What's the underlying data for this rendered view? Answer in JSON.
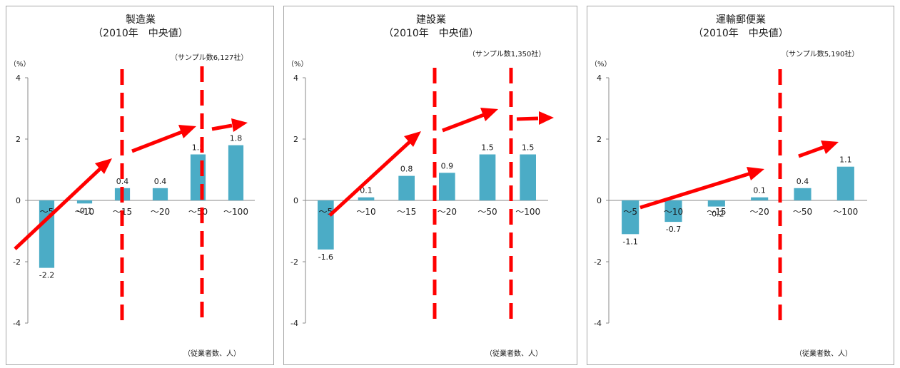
{
  "colors": {
    "bar": "#4bacc6",
    "dashed_line": "#ff0000",
    "arrow": "#ff0000",
    "axis": "#888888"
  },
  "chart_data": [
    {
      "type": "bar",
      "title": "製造業",
      "subtitle": "（2010年　中央値）",
      "yunit": "（%）",
      "sample_note": "（サンプル数6,127社）",
      "xlabel": "（従業者数、人）",
      "ylim": [
        -4,
        4
      ],
      "yticks": [
        "4",
        "2",
        "0",
        "-2",
        "-4"
      ],
      "categories": [
        "～5",
        "～10",
        "～15",
        "～20",
        "～50",
        "～100"
      ],
      "values": [
        -2.2,
        -0.1,
        0.4,
        0.4,
        1.5,
        1.8
      ],
      "value_labels": [
        "-2.2",
        "-0.1",
        "0.4",
        "0.4",
        "1.5",
        "1.8"
      ]
    },
    {
      "type": "bar",
      "title": "建設業",
      "subtitle": "（2010年　中央値）",
      "yunit": "（%）",
      "sample_note": "（サンプル数1,350社）",
      "xlabel": "（従業者数、人）",
      "ylim": [
        -4,
        4
      ],
      "yticks": [
        "4",
        "2",
        "0",
        "-2",
        "-4"
      ],
      "categories": [
        "～5",
        "～10",
        "～15",
        "～20",
        "～50",
        "～100"
      ],
      "values": [
        -1.6,
        0.1,
        0.8,
        0.9,
        1.5,
        1.5
      ],
      "value_labels": [
        "-1.6",
        "0.1",
        "0.8",
        "0.9",
        "1.5",
        "1.5"
      ]
    },
    {
      "type": "bar",
      "title": "運輸郵便業",
      "subtitle": "（2010年　中央値）",
      "yunit": "（%）",
      "sample_note": "（サンプル数5,190社）",
      "xlabel": "（従業者数、人）",
      "ylim": [
        -4,
        4
      ],
      "yticks": [
        "4",
        "2",
        "0",
        "-2",
        "-4"
      ],
      "categories": [
        "～5",
        "～10",
        "～15",
        "～20",
        "～50",
        "～100"
      ],
      "values": [
        -1.1,
        -0.7,
        -0.2,
        0.1,
        0.4,
        1.1
      ],
      "value_labels": [
        "-1.1",
        "-0.7",
        "-0.2",
        "0.1",
        "0.4",
        "1.1"
      ]
    }
  ]
}
